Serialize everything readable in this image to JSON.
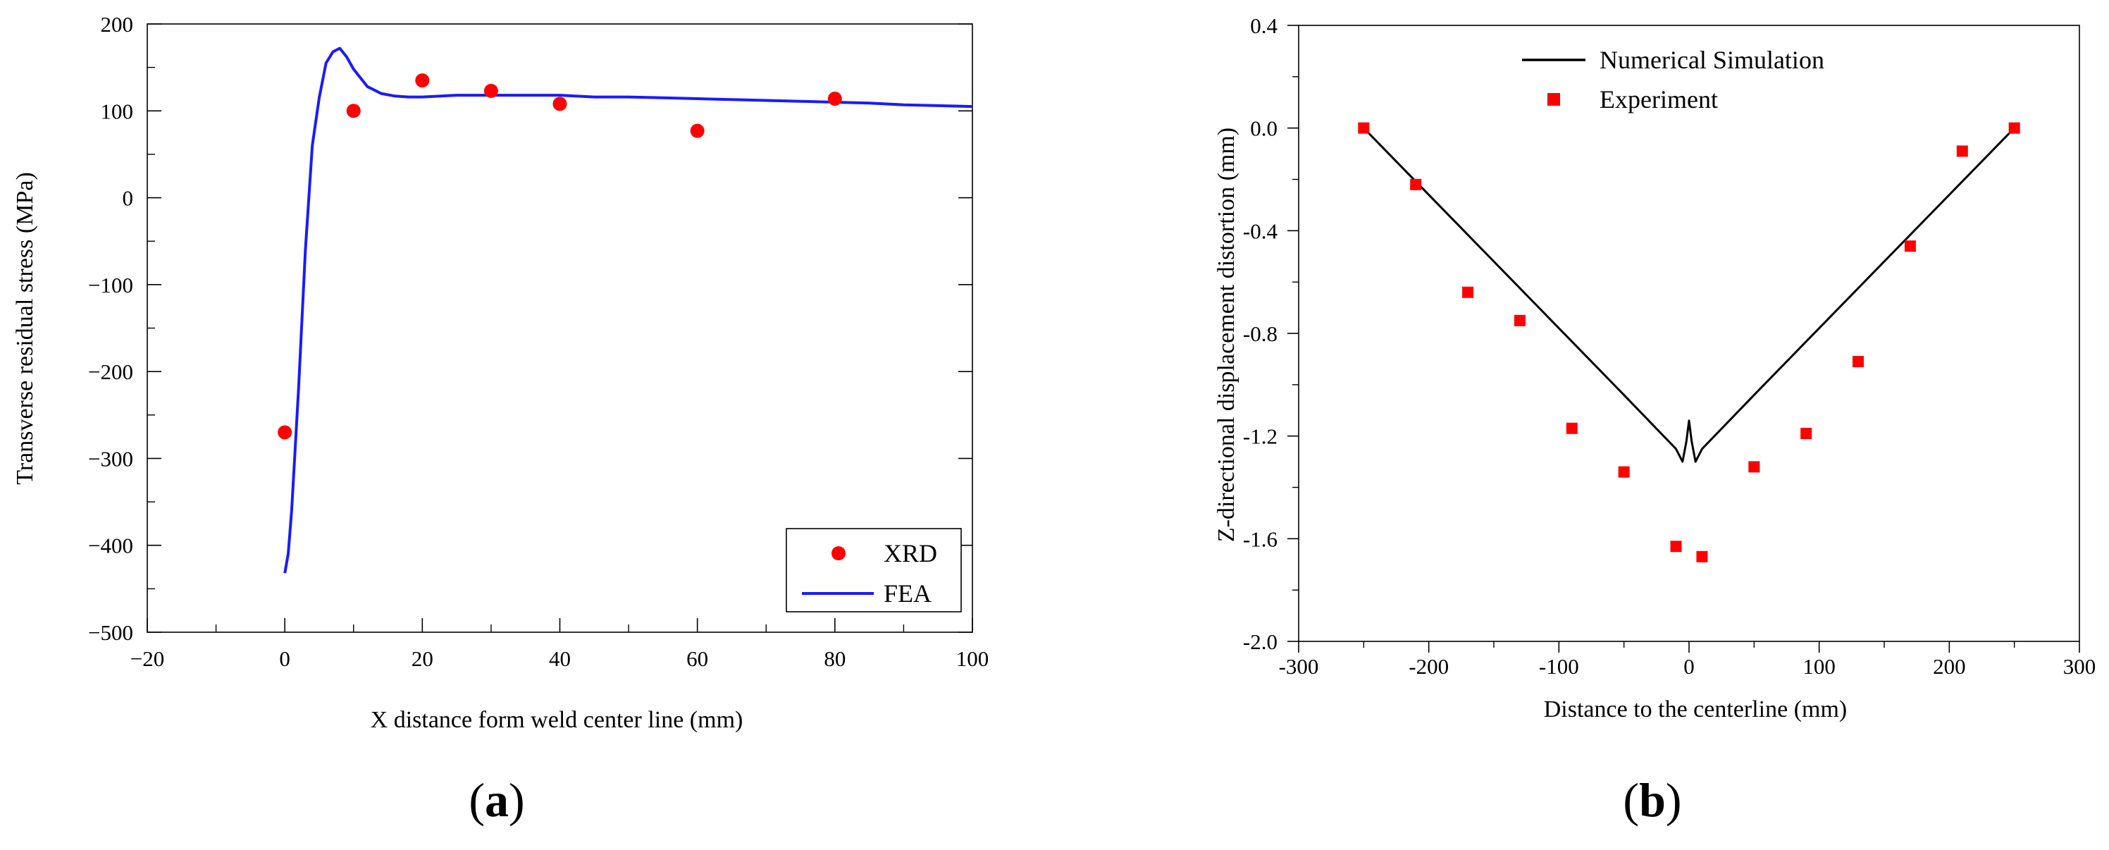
{
  "chart_data": [
    {
      "type": "scatter",
      "panel_label": "a",
      "title": "",
      "xlabel": "X distance form weld center line (mm)",
      "ylabel": "Transverse residual stress (MPa)",
      "xlim": [
        -20,
        100
      ],
      "ylim": [
        -500,
        200
      ],
      "xticks": [
        -20,
        0,
        20,
        40,
        60,
        80,
        100
      ],
      "xtick_labels": [
        "−20",
        "0",
        "20",
        "40",
        "60",
        "80",
        "100"
      ],
      "yticks": [
        -500,
        -400,
        -300,
        -200,
        -100,
        0,
        100,
        200
      ],
      "ytick_labels": [
        "−500",
        "−400",
        "−300",
        "−200",
        "−100",
        "0",
        "100",
        "200"
      ],
      "legend_position": "bottom-right",
      "series": [
        {
          "name": "XRD",
          "kind": "scatter",
          "marker": "circle",
          "color": "#ff0000",
          "x": [
            0,
            10,
            20,
            30,
            40,
            60,
            80
          ],
          "y": [
            -270,
            100,
            135,
            123,
            108,
            77,
            114
          ]
        },
        {
          "name": "FEA",
          "kind": "line",
          "color": "#1a1aff",
          "x": [
            0,
            0.5,
            1,
            2,
            3,
            4,
            5,
            6,
            7,
            8,
            9,
            10,
            12,
            14,
            16,
            18,
            20,
            25,
            30,
            35,
            40,
            45,
            50,
            55,
            60,
            65,
            70,
            75,
            80,
            85,
            90,
            95,
            100
          ],
          "y": [
            -432,
            -410,
            -360,
            -220,
            -60,
            60,
            115,
            155,
            168,
            172,
            162,
            148,
            128,
            120,
            117,
            116,
            116,
            118,
            118,
            118,
            118,
            116,
            116,
            115,
            114,
            113,
            112,
            111,
            110,
            109,
            107,
            106,
            105
          ]
        }
      ]
    },
    {
      "type": "scatter",
      "panel_label": "b",
      "title": "",
      "xlabel": "Distance to the centerline (mm)",
      "ylabel": "Z-directional displacement distortion (mm)",
      "xlim": [
        -300,
        300
      ],
      "ylim": [
        -2.0,
        0.4
      ],
      "xticks": [
        -300,
        -200,
        -100,
        0,
        100,
        200,
        300
      ],
      "xtick_labels": [
        "-300",
        "-200",
        "-100",
        "0",
        "100",
        "200",
        "300"
      ],
      "yticks": [
        -2.0,
        -1.6,
        -1.2,
        -0.8,
        -0.4,
        0.0,
        0.4
      ],
      "ytick_labels": [
        "-2.0",
        "-1.6",
        "-1.2",
        "-0.8",
        "-0.4",
        "0.0",
        "0.4"
      ],
      "legend_position": "top-center",
      "series": [
        {
          "name": "Numerical Simulation",
          "kind": "line",
          "color": "#000000",
          "x": [
            -250,
            -150,
            -50,
            -10,
            -5,
            -2,
            0,
            2,
            5,
            10,
            50,
            150,
            250
          ],
          "y": [
            0.0,
            -0.52,
            -1.04,
            -1.25,
            -1.3,
            -1.22,
            -1.14,
            -1.22,
            -1.3,
            -1.25,
            -1.04,
            -0.52,
            0.0
          ]
        },
        {
          "name": "Experiment",
          "kind": "scatter",
          "marker": "square",
          "color": "#ff0000",
          "x": [
            -250,
            -210,
            -170,
            -130,
            -90,
            -50,
            -10,
            10,
            50,
            90,
            130,
            170,
            210,
            250
          ],
          "y": [
            0.0,
            -0.22,
            -0.64,
            -0.75,
            -1.17,
            -1.34,
            -1.63,
            -1.67,
            -1.32,
            -1.19,
            -0.91,
            -0.46,
            -0.09,
            0.0
          ]
        }
      ]
    }
  ]
}
